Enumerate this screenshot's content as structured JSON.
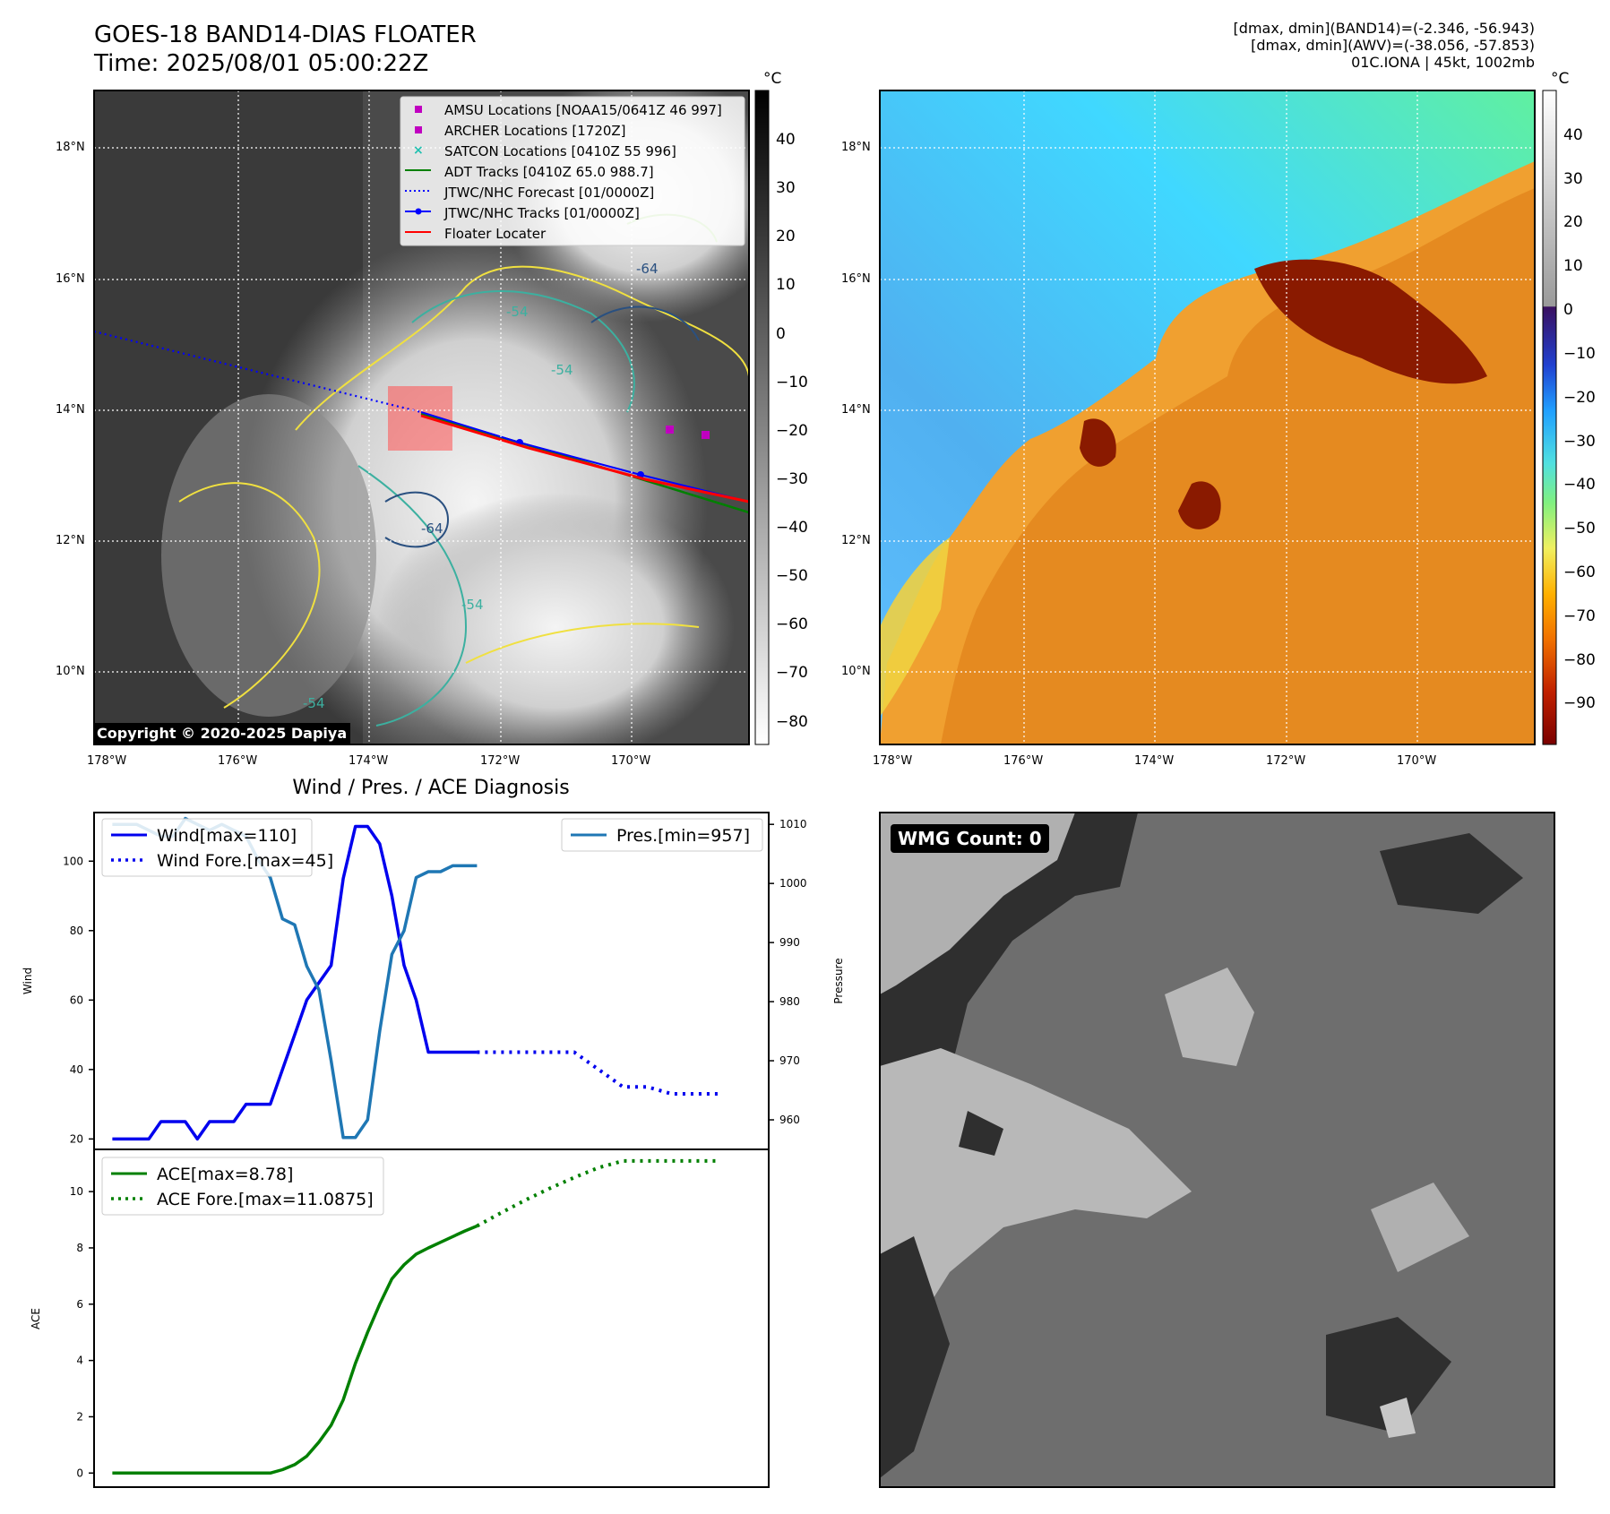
{
  "header": {
    "title": "GOES-18 BAND14-DIAS FLOATER",
    "time": "Time: 2025/08/01 05:00:22Z",
    "info_line1": "[dmax, dmin](BAND14)=(-2.346, -56.943)",
    "info_line2": "[dmax, dmin](AWV)=(-38.056, -57.853)",
    "info_line3": "01C.IONA | 45kt, 1002mb"
  },
  "map": {
    "lat_labels": [
      "18°N",
      "16°N",
      "14°N",
      "12°N",
      "10°N"
    ],
    "lon_labels": [
      "178°W",
      "176°W",
      "174°W",
      "172°W",
      "170°W"
    ],
    "copyright": "Copyright © 2020-2025 Dapiya",
    "contour_labels": [
      "-64",
      "-54",
      "-54",
      "-64",
      "-54",
      "-54",
      "-64",
      "-54"
    ],
    "legend": [
      {
        "label": "AMSU Locations [NOAA15/0641Z 46 997]",
        "kind": "square",
        "color": "#c000c0"
      },
      {
        "label": "ARCHER Locations [1720Z]",
        "kind": "square",
        "color": "#c000c0"
      },
      {
        "label": "SATCON Locations [0410Z 55 996]",
        "kind": "x",
        "color": "#20c0b0"
      },
      {
        "label": "ADT Tracks [0410Z 65.0 988.7]",
        "kind": "line",
        "color": "#008000"
      },
      {
        "label": "JTWC/NHC Forecast [01/0000Z]",
        "kind": "dotted",
        "color": "#0000ff"
      },
      {
        "label": "JTWC/NHC Tracks [01/0000Z]",
        "kind": "linedot",
        "color": "#0000ff"
      },
      {
        "label": "Floater Locater",
        "kind": "line",
        "color": "#ff0000"
      }
    ]
  },
  "colorbar_left": {
    "unit": "°C",
    "ticks": [
      "40",
      "30",
      "20",
      "10",
      "0",
      "−10",
      "−20",
      "−30",
      "−40",
      "−50",
      "−60",
      "−70",
      "−80"
    ]
  },
  "colorbar_right": {
    "unit": "°C",
    "ticks": [
      "40",
      "30",
      "20",
      "10",
      "0",
      "−10",
      "−20",
      "−30",
      "−40",
      "−50",
      "−60",
      "−70",
      "−80",
      "−90"
    ]
  },
  "wmg": {
    "label": "WMG Count: 0"
  },
  "chart_data": [
    {
      "type": "line",
      "title": "Wind / Pres. / ACE Diagnosis",
      "ylabel": "Wind",
      "y2label": "Pressure",
      "ylim": [
        17,
        114
      ],
      "y2lim": [
        955,
        1012
      ],
      "yticks": [
        20,
        40,
        60,
        80,
        100
      ],
      "y2ticks": [
        960,
        970,
        980,
        990,
        1000,
        1010
      ],
      "grid": false,
      "legend_left": [
        "Wind[max=110]",
        "Wind Fore.[max=45]"
      ],
      "legend_right": [
        "Pres.[min=957]"
      ],
      "series": [
        {
          "name": "Wind[max=110]",
          "axis": "y",
          "style": "solid",
          "color": "#0000ee",
          "x": [
            0,
            1,
            2,
            3,
            4,
            5,
            6,
            7,
            8,
            9,
            10,
            11,
            12,
            13,
            14,
            15,
            16,
            17,
            18,
            19,
            20,
            21,
            22,
            23,
            24,
            25,
            26,
            27,
            28,
            29,
            30
          ],
          "values": [
            20,
            20,
            20,
            20,
            25,
            25,
            25,
            20,
            25,
            25,
            25,
            30,
            30,
            30,
            40,
            50,
            60,
            65,
            70,
            95,
            110,
            110,
            105,
            90,
            70,
            60,
            45,
            45,
            45,
            45,
            45
          ]
        },
        {
          "name": "Wind Fore.[max=45]",
          "axis": "y",
          "style": "dotted",
          "color": "#0000ee",
          "x": [
            30,
            32,
            34,
            36,
            38,
            40,
            42,
            44,
            46,
            48,
            50
          ],
          "values": [
            45,
            45,
            45,
            45,
            45,
            40,
            35,
            35,
            33,
            33,
            33
          ]
        },
        {
          "name": "Pres.[min=957]",
          "axis": "y2",
          "style": "solid",
          "color": "#1f77b4",
          "x": [
            0,
            1,
            2,
            3,
            4,
            5,
            6,
            7,
            8,
            9,
            10,
            11,
            12,
            13,
            14,
            15,
            16,
            17,
            18,
            19,
            20,
            21,
            22,
            23,
            24,
            25,
            26,
            27,
            28,
            29,
            30
          ],
          "values": [
            1010,
            1010,
            1010,
            1009,
            1008,
            1008,
            1011,
            1010,
            1009,
            1010,
            1009,
            1008,
            1004,
            1001,
            994,
            993,
            986,
            982,
            970,
            957,
            957,
            960,
            975,
            988,
            992,
            1001,
            1002,
            1002,
            1003,
            1003,
            1003
          ]
        }
      ]
    },
    {
      "type": "line",
      "ylabel": "ACE",
      "ylim": [
        -0.5,
        11.5
      ],
      "yticks": [
        0,
        2,
        4,
        6,
        8,
        10
      ],
      "grid": false,
      "legend": [
        "ACE[max=8.78]",
        "ACE Fore.[max=11.0875]"
      ],
      "series": [
        {
          "name": "ACE[max=8.78]",
          "style": "solid",
          "color": "#008000",
          "x": [
            0,
            1,
            2,
            3,
            4,
            5,
            6,
            7,
            8,
            9,
            10,
            11,
            12,
            13,
            14,
            15,
            16,
            17,
            18,
            19,
            20,
            21,
            22,
            23,
            24,
            25,
            26,
            27,
            28,
            29,
            30
          ],
          "values": [
            0,
            0,
            0,
            0,
            0,
            0,
            0,
            0,
            0,
            0,
            0,
            0,
            0,
            0,
            0.12,
            0.3,
            0.6,
            1.1,
            1.7,
            2.6,
            3.9,
            5.0,
            6.0,
            6.9,
            7.4,
            7.78,
            8.0,
            8.2,
            8.4,
            8.6,
            8.78
          ]
        },
        {
          "name": "ACE Fore.[max=11.0875]",
          "style": "dotted",
          "color": "#008000",
          "x": [
            30,
            32,
            34,
            36,
            38,
            40,
            42,
            44,
            46,
            48,
            50
          ],
          "values": [
            8.78,
            9.25,
            9.7,
            10.12,
            10.5,
            10.85,
            11.09,
            11.09,
            11.09,
            11.09,
            11.09
          ]
        }
      ]
    }
  ]
}
